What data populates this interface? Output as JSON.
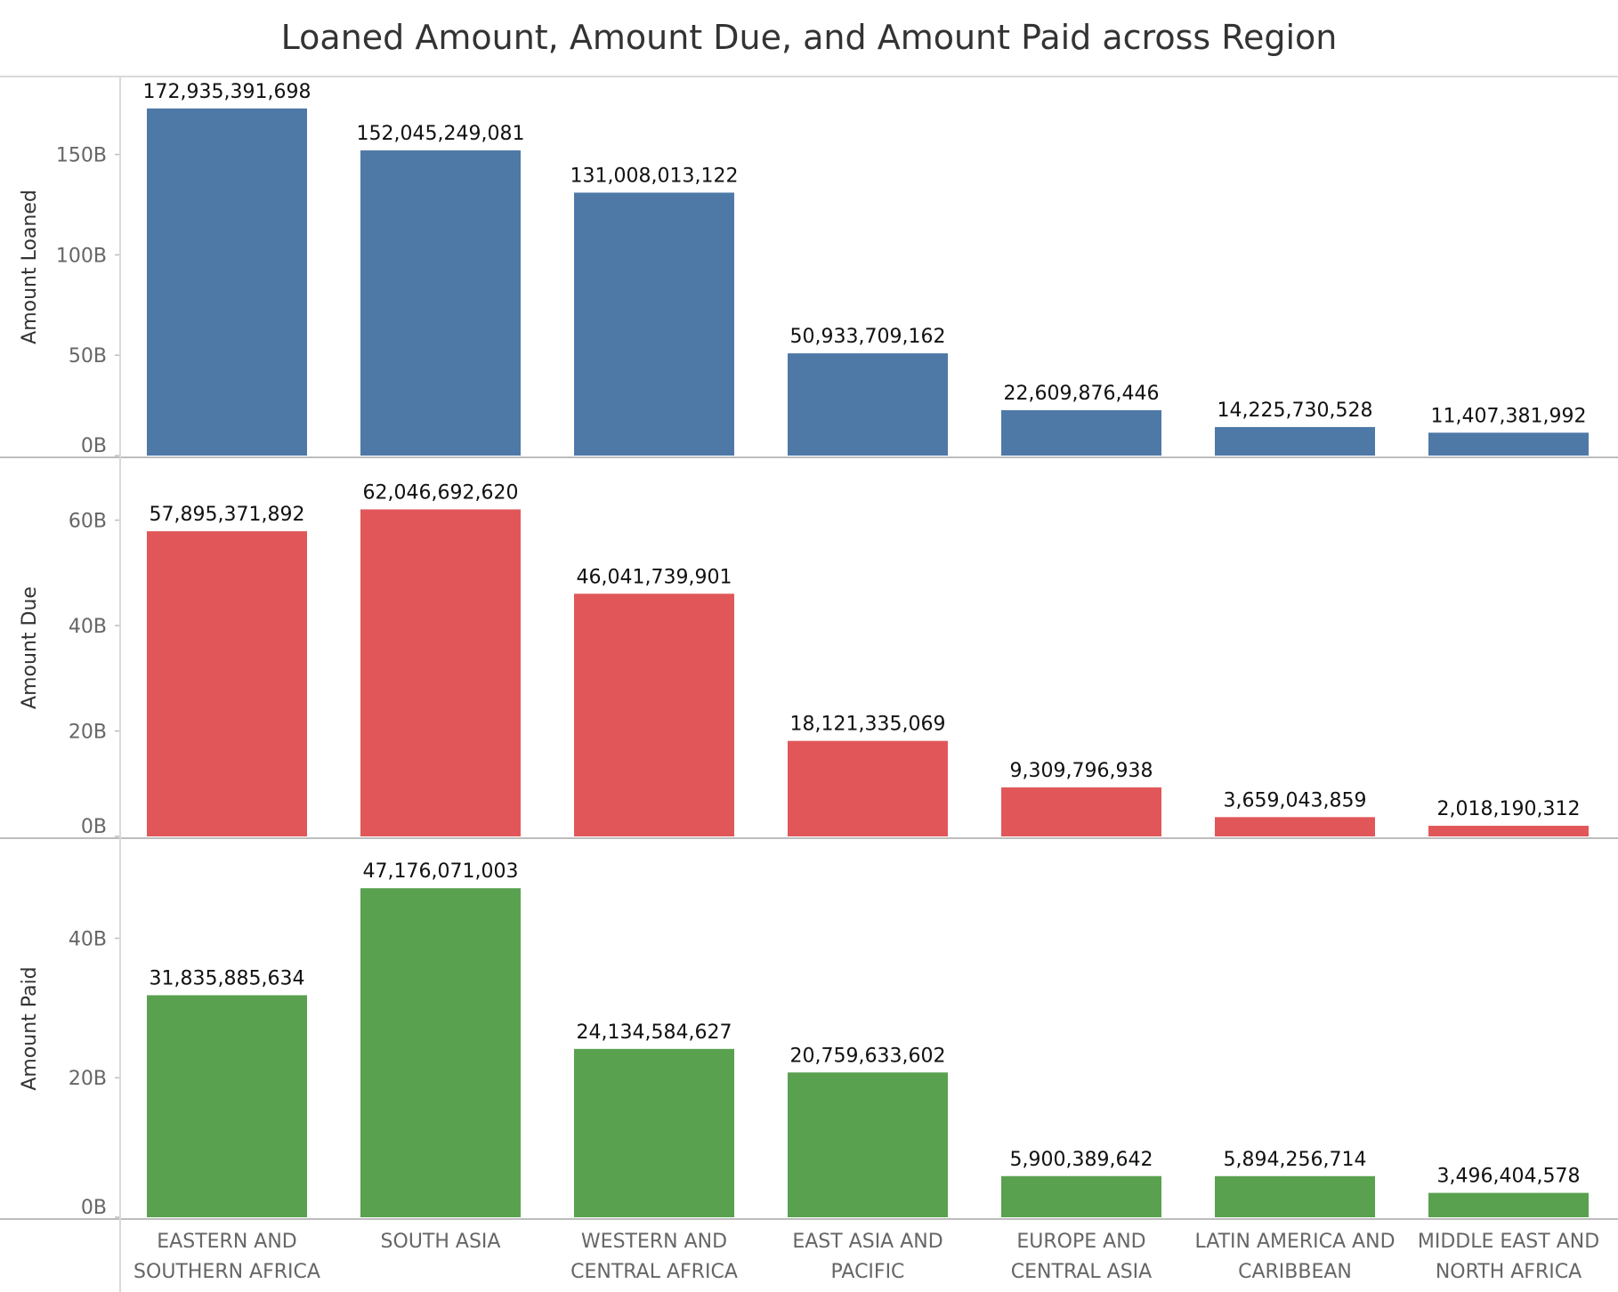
{
  "chart_data": {
    "type": "bar",
    "title": "Loaned Amount, Amount Due, and Amount Paid across Region",
    "categories": [
      [
        "EASTERN AND",
        "SOUTHERN AFRICA"
      ],
      [
        "SOUTH ASIA"
      ],
      [
        "WESTERN AND",
        "CENTRAL AFRICA"
      ],
      [
        "EAST ASIA AND",
        "PACIFIC"
      ],
      [
        "EUROPE AND",
        "CENTRAL ASIA"
      ],
      [
        "LATIN AMERICA AND",
        "CARIBBEAN"
      ],
      [
        "MIDDLE EAST AND",
        "NORTH AFRICA"
      ]
    ],
    "panels": [
      {
        "ylabel": "Amount Loaned",
        "color": "#4e79a7",
        "ylim": [
          0,
          172000000000
        ],
        "ticks": [
          0,
          50000000000,
          100000000000,
          150000000000
        ],
        "tick_labels": [
          "0B",
          "50B",
          "100B",
          "150B"
        ],
        "values": [
          172935391698,
          152045249081,
          131008013122,
          50933709162,
          22609876446,
          14225730528,
          11407381992
        ],
        "labels": [
          "172,935,391,698",
          "152,045,249,081",
          "131,008,013,122",
          "50,933,709,162",
          "22,609,876,446",
          "14,225,730,528",
          "11,407,381,992"
        ]
      },
      {
        "ylabel": "Amount Due",
        "color": "#e15759",
        "ylim": [
          0,
          65500000000
        ],
        "ticks": [
          0,
          20000000000,
          40000000000,
          60000000000
        ],
        "tick_labels": [
          "0B",
          "20B",
          "40B",
          "60B"
        ],
        "values": [
          57895371892,
          62046692620,
          46041739901,
          18121335069,
          9309796938,
          3659043859,
          2018190312
        ],
        "labels": [
          "57,895,371,892",
          "62,046,692,620",
          "46,041,739,901",
          "18,121,335,069",
          "9,309,796,938",
          "3,659,043,859",
          "2,018,190,312"
        ]
      },
      {
        "ylabel": "Amount Paid",
        "color": "#59a14f",
        "ylim": [
          0,
          49500000000
        ],
        "ticks": [
          0,
          20000000000,
          40000000000
        ],
        "tick_labels": [
          "0B",
          "20B",
          "40B"
        ],
        "values": [
          31835885634,
          47176071003,
          24134584627,
          20759633602,
          5900389642,
          5894256714,
          3496404578
        ],
        "labels": [
          "31,835,885,634",
          "47,176,071,003",
          "24,134,584,627",
          "20,759,633,602",
          "5,900,389,642",
          "5,894,256,714",
          "3,496,404,578"
        ]
      }
    ],
    "grid": false,
    "legend": "none"
  }
}
